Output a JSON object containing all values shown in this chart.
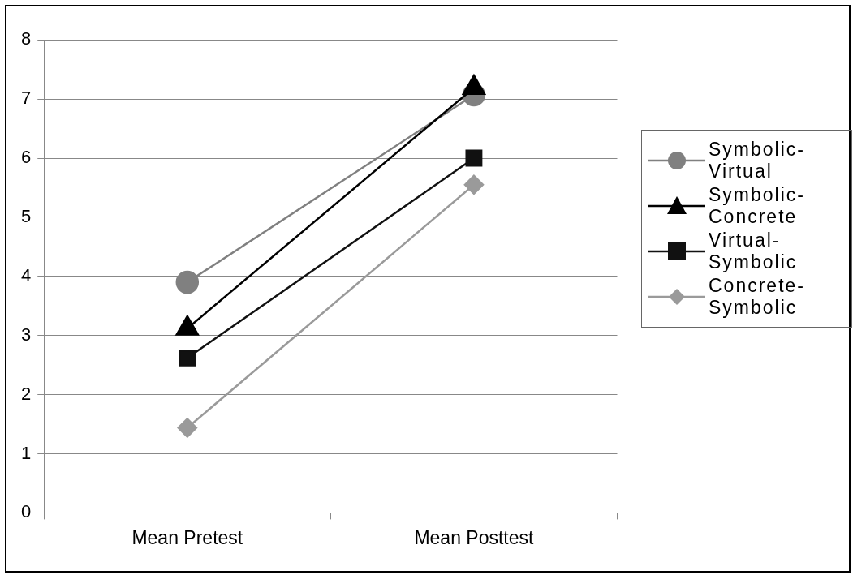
{
  "chart_data": {
    "type": "line",
    "categories": [
      "Mean Pretest",
      "Mean Posttest"
    ],
    "series": [
      {
        "name": "Symbolic-Virtual",
        "color": "#808080",
        "marker": "circle",
        "values": [
          3.9,
          7.07
        ]
      },
      {
        "name": "Symbolic-Concrete",
        "color": "#000000",
        "marker": "triangle",
        "values": [
          3.12,
          7.19
        ]
      },
      {
        "name": "Virtual-Symbolic",
        "color": "#111111",
        "marker": "square",
        "values": [
          2.62,
          6.0
        ]
      },
      {
        "name": "Concrete-Symbolic",
        "color": "#9a9a9a",
        "marker": "diamond",
        "values": [
          1.44,
          5.55
        ]
      }
    ],
    "ylim": [
      0,
      8
    ],
    "yticks": [
      0,
      1,
      2,
      3,
      4,
      5,
      6,
      7,
      8
    ],
    "grid": "y",
    "legend": "right",
    "line_style": "solid"
  }
}
